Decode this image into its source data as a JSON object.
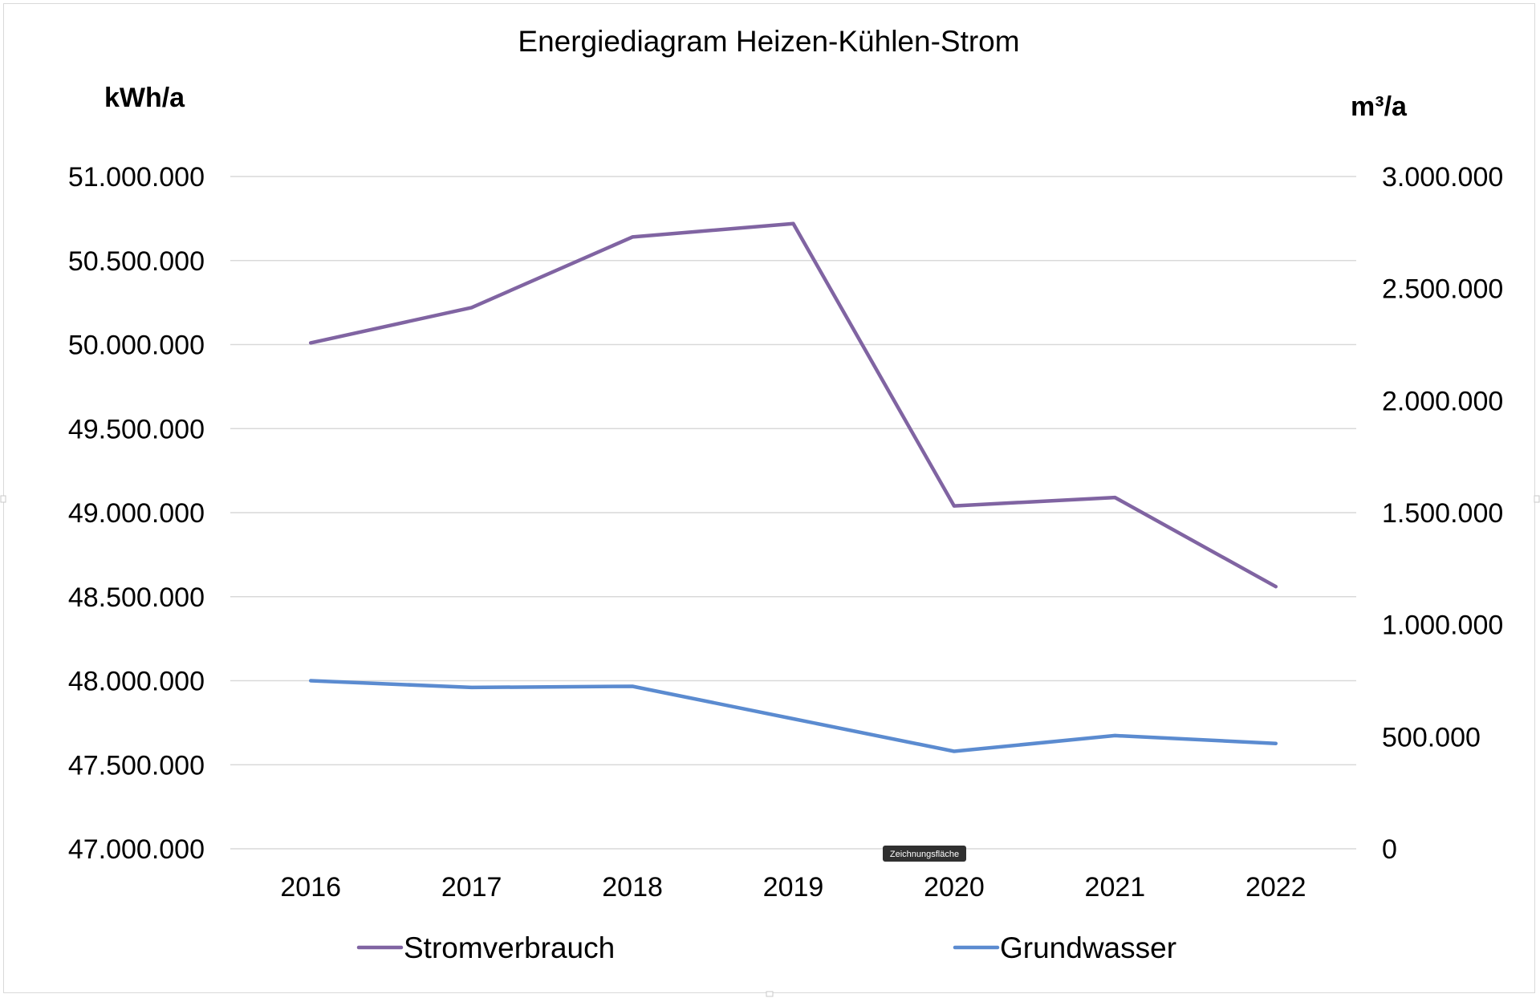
{
  "chart_data": {
    "type": "line",
    "title": "Energiediagram Heizen-Kühlen-Strom",
    "categories": [
      "2016",
      "2017",
      "2018",
      "2019",
      "2020",
      "2021",
      "2022"
    ],
    "y_left": {
      "unit_label": "kWh/a",
      "ylim": [
        47000000,
        51000000
      ],
      "ticks": [
        "47.000.000",
        "47.500.000",
        "48.000.000",
        "48.500.000",
        "49.000.000",
        "49.500.000",
        "50.000.000",
        "50.500.000",
        "51.000.000"
      ]
    },
    "y_right": {
      "unit_label": "m³/a",
      "ylim": [
        0,
        3000000
      ],
      "ticks": [
        "0",
        "500.000",
        "1.000.000",
        "1.500.000",
        "2.000.000",
        "2.500.000",
        "3.000.000"
      ]
    },
    "series": [
      {
        "name": "Stromverbrauch",
        "axis": "left",
        "color": "#8064a2",
        "values": [
          50010000,
          50220000,
          50640000,
          50720000,
          49040000,
          49090000,
          48560000
        ]
      },
      {
        "name": "Grundwasser",
        "axis": "right",
        "color": "#5b8bd0",
        "values": [
          750000,
          720000,
          725000,
          580000,
          435000,
          505000,
          470000
        ]
      }
    ],
    "grid": true,
    "legend_position": "bottom"
  },
  "tooltip": {
    "label": "Zeichnungsfläche"
  }
}
